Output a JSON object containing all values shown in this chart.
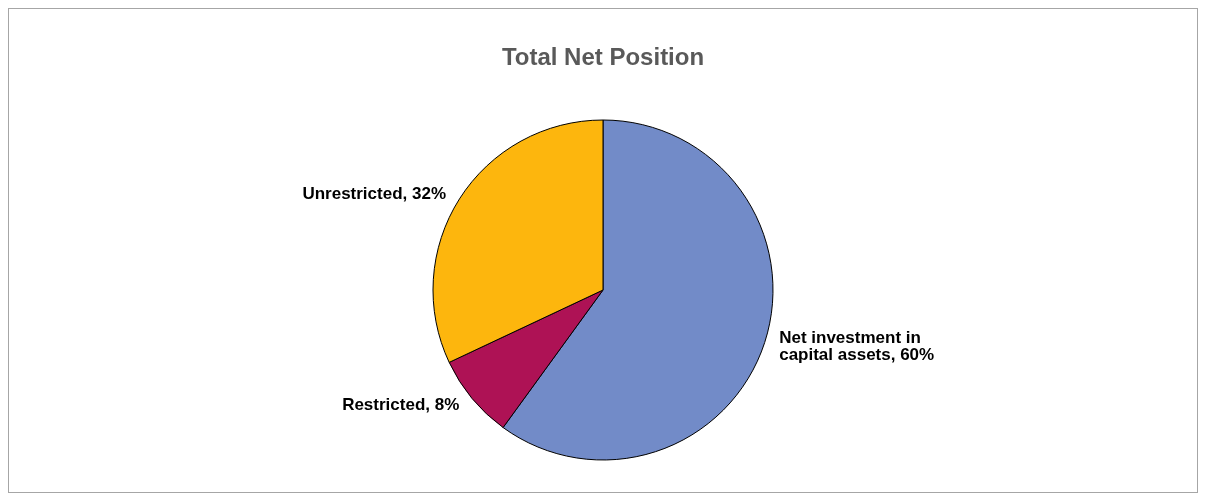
{
  "chart_data": {
    "type": "pie",
    "title": "Total Net Position",
    "categories": [
      "Net investment in capital assets",
      "Restricted",
      "Unrestricted"
    ],
    "values": [
      60,
      8,
      32
    ],
    "colors": [
      "#728bc8",
      "#ae1255",
      "#fdb60d"
    ],
    "value_labels": [
      "60%",
      "8%",
      "32%"
    ],
    "legend": false
  }
}
